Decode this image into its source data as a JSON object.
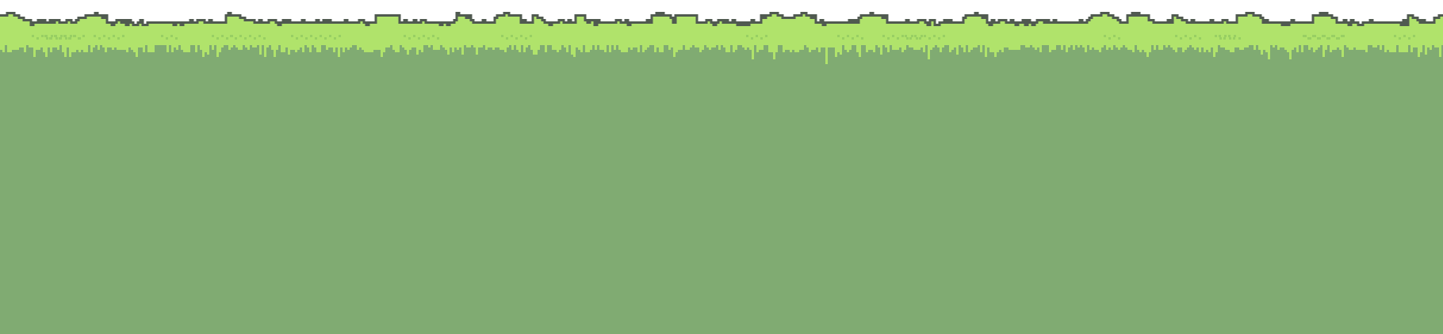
{
  "scene": {
    "kind": "pixel-art grass terrain tile",
    "sky_color": "#ffffff",
    "outline_color": "#505a50",
    "grass_color": "#b0e36b",
    "grass_speckle_color": "#98cf63",
    "soil_color": "#80ab72"
  }
}
